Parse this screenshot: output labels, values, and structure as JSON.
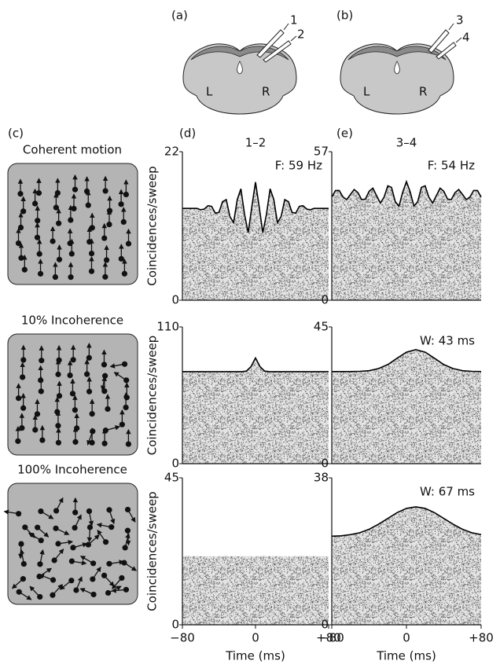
{
  "panels": {
    "a": "(a)",
    "b": "(b)",
    "c": "(c)"
  },
  "diagram_a": {
    "electrodes": [
      "1",
      "2"
    ],
    "left": "L",
    "right": "R"
  },
  "diagram_b": {
    "electrodes": [
      "3",
      "4"
    ],
    "left": "L",
    "right": "R"
  },
  "conditions": [
    "Coherent motion",
    "10% Incoherence",
    "100% Incoherence"
  ],
  "columns": [
    {
      "panel": "(d)",
      "title": "1–2"
    },
    {
      "panel": "(e)",
      "title": "3–4"
    }
  ],
  "chart_data": [
    {
      "type": "line",
      "ylabel": "Coincidences/sweep",
      "annotation": "F: 59 Hz",
      "fit_line": true,
      "color": "#000000",
      "fill": "#9a9a9a",
      "x": [
        -80,
        -76,
        -72,
        -68,
        -64,
        -60,
        -56,
        -52,
        -48,
        -44,
        -40,
        -36,
        -32,
        -28,
        -24,
        -20,
        -16,
        -12,
        -8,
        -4,
        0,
        4,
        8,
        12,
        16,
        20,
        24,
        28,
        32,
        36,
        40,
        44,
        48,
        52,
        56,
        60,
        64,
        68,
        72,
        76,
        80
      ],
      "values": [
        13.6,
        13.6,
        13.6,
        13.6,
        13.6,
        13.4,
        13.5,
        14.0,
        13.9,
        12.9,
        13.0,
        14.6,
        14.9,
        12.4,
        11.5,
        14.9,
        16.5,
        12.7,
        10.0,
        13.9,
        17.5,
        13.9,
        10.0,
        12.7,
        16.5,
        14.9,
        11.5,
        12.4,
        14.9,
        14.6,
        13.0,
        12.9,
        13.9,
        14.0,
        13.5,
        13.4,
        13.6,
        13.6,
        13.6,
        13.6,
        13.6
      ],
      "xlim": [
        -80,
        80
      ],
      "ylim": [
        0,
        22
      ],
      "yticks": [
        0,
        22
      ]
    },
    {
      "type": "line",
      "annotation": "F: 54 Hz",
      "fit_line": true,
      "color": "#000000",
      "fill": "#9a9a9a",
      "x": [
        -80,
        -76,
        -72,
        -68,
        -64,
        -60,
        -56,
        -52,
        -48,
        -44,
        -40,
        -36,
        -32,
        -28,
        -24,
        -20,
        -16,
        -12,
        -8,
        -4,
        0,
        4,
        8,
        12,
        16,
        20,
        24,
        28,
        32,
        36,
        40,
        44,
        48,
        52,
        56,
        60,
        64,
        68,
        72,
        76,
        80
      ],
      "values": [
        39.6,
        42.1,
        42.1,
        39.6,
        38.6,
        40.6,
        42.5,
        41.3,
        38.6,
        38.8,
        41.8,
        43.0,
        40.1,
        37.3,
        39.5,
        43.9,
        43.3,
        37.8,
        36.1,
        41.5,
        45.5,
        41.5,
        36.1,
        37.8,
        43.3,
        43.9,
        39.5,
        37.3,
        40.1,
        43.0,
        41.8,
        38.8,
        38.6,
        41.3,
        42.5,
        40.6,
        38.6,
        39.6,
        42.1,
        42.1,
        39.6
      ],
      "xlim": [
        -80,
        80
      ],
      "ylim": [
        0,
        57
      ],
      "yticks": [
        0,
        57
      ]
    },
    {
      "type": "line",
      "ylabel": "Coincidences/sweep",
      "fit_line": true,
      "color": "#000000",
      "fill": "#9a9a9a",
      "x": [
        -80,
        -75,
        -70,
        -65,
        -60,
        -55,
        -50,
        -45,
        -40,
        -35,
        -30,
        -25,
        -20,
        -15,
        -10,
        -5,
        0,
        5,
        10,
        15,
        20,
        25,
        30,
        35,
        40,
        45,
        50,
        55,
        60,
        65,
        70,
        75,
        80
      ],
      "values": [
        74,
        74,
        74,
        74,
        74,
        74,
        74,
        74,
        74,
        74,
        74,
        74,
        74,
        74,
        74.5,
        78,
        85,
        78,
        74.5,
        74,
        74,
        74,
        74,
        74,
        74,
        74,
        74,
        74,
        74,
        74,
        74,
        74,
        74
      ],
      "xlim": [
        -80,
        80
      ],
      "ylim": [
        0,
        110
      ],
      "yticks": [
        0,
        110
      ]
    },
    {
      "type": "line",
      "annotation": "W:  43 ms",
      "fit_line": true,
      "color": "#000000",
      "fill": "#9a9a9a",
      "x": [
        -80,
        -70,
        -60,
        -50,
        -40,
        -30,
        -20,
        -10,
        0,
        10,
        20,
        30,
        40,
        50,
        60,
        70,
        80
      ],
      "values": [
        30.3,
        30.3,
        30.3,
        30.4,
        30.6,
        31.3,
        32.6,
        34.7,
        36.7,
        37.5,
        36.7,
        34.7,
        32.6,
        31.3,
        30.6,
        30.4,
        30.3
      ],
      "xlim": [
        -80,
        80
      ],
      "ylim": [
        0,
        45
      ],
      "yticks": [
        0,
        45
      ]
    },
    {
      "type": "line",
      "ylabel": "Coincidences/sweep",
      "xlabel": "Time (ms)",
      "fit_line": false,
      "color": "#000000",
      "fill": "#9a9a9a",
      "x": [
        -80,
        -70,
        -60,
        -50,
        -40,
        -30,
        -20,
        -10,
        0,
        10,
        20,
        30,
        40,
        50,
        60,
        70,
        80
      ],
      "values": [
        21,
        21,
        21,
        21,
        21,
        21,
        21,
        21,
        21,
        21,
        21,
        21,
        21,
        21,
        21,
        21,
        21
      ],
      "xlim": [
        -80,
        80
      ],
      "ylim": [
        0,
        45
      ],
      "yticks": [
        0,
        45
      ],
      "xticks": [
        {
          "value": -80,
          "label": "−80"
        },
        0,
        {
          "value": 80,
          "label": "+80"
        }
      ]
    },
    {
      "type": "line",
      "xlabel": "Time (ms)",
      "annotation": "W:  67 ms",
      "fit_line": true,
      "color": "#000000",
      "fill": "#9a9a9a",
      "x": [
        -80,
        -70,
        -60,
        -50,
        -40,
        -30,
        -20,
        -10,
        0,
        10,
        20,
        30,
        40,
        50,
        60,
        70,
        80
      ],
      "values": [
        22.9,
        23.0,
        23.3,
        23.8,
        24.7,
        26.0,
        27.5,
        29.0,
        30.1,
        30.5,
        30.1,
        29.0,
        27.5,
        26.0,
        24.7,
        23.8,
        23.3
      ],
      "xlim": [
        -80,
        80
      ],
      "ylim": [
        0,
        38
      ],
      "yticks": [
        0,
        38
      ],
      "xticks": [
        {
          "value": -80,
          "label": "−80"
        },
        0,
        {
          "value": 80,
          "label": "+80"
        }
      ]
    }
  ]
}
